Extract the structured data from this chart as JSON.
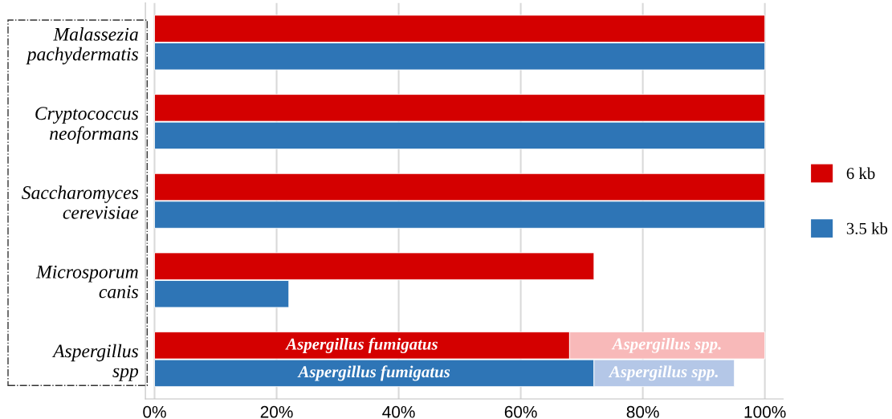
{
  "chart_data": {
    "type": "bar",
    "orientation": "horizontal",
    "categories": [
      "Malassezia\npachydermatis",
      "Cryptococcus\nneoformans",
      "Saccharomyces\ncerevisiae",
      "Microsporum\ncanis",
      "Aspergillus\nspp"
    ],
    "series": [
      {
        "name": "6 kb",
        "color": "#d40000",
        "values": [
          100,
          100,
          100,
          72,
          68
        ],
        "value_labels": [
          null,
          null,
          null,
          null,
          "Aspergillus fumigatus"
        ]
      },
      {
        "color": "#f8b9b9",
        "values": [
          null,
          null,
          null,
          null,
          32
        ],
        "base": [
          null,
          null,
          null,
          null,
          68
        ],
        "value_labels": [
          null,
          null,
          null,
          null,
          "Aspergillus spp."
        ]
      },
      {
        "name": "3.5 kb",
        "color": "#2e75b6",
        "values": [
          100,
          100,
          100,
          22,
          72
        ],
        "value_labels": [
          null,
          null,
          null,
          null,
          "Aspergillus fumigatus"
        ]
      },
      {
        "color": "#b4c7e7",
        "values": [
          null,
          null,
          null,
          null,
          23
        ],
        "base": [
          null,
          null,
          null,
          null,
          72
        ],
        "value_labels": [
          null,
          null,
          null,
          null,
          "Aspergillus spp."
        ]
      }
    ],
    "xlim": [
      -1.5,
      103
    ],
    "xticks": [
      {
        "value": 0,
        "label": "0%"
      },
      {
        "value": 20,
        "label": "20%"
      },
      {
        "value": 40,
        "label": "40%"
      },
      {
        "value": 60,
        "label": "60%"
      },
      {
        "value": 80,
        "label": "80%"
      },
      {
        "value": 100,
        "label": "100%"
      }
    ],
    "grid": "x",
    "legend": "right"
  }
}
